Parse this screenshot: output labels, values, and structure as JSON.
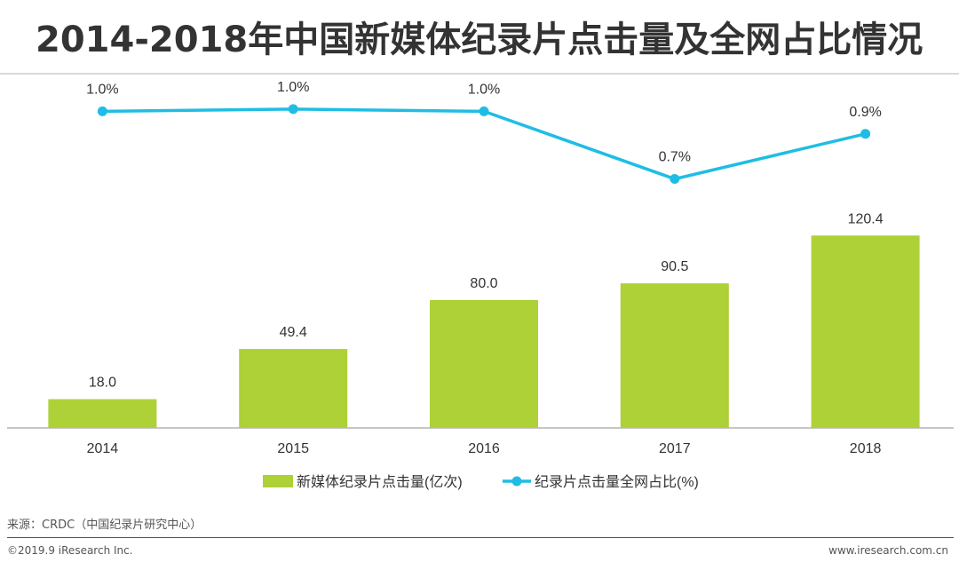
{
  "page": {
    "title": "2014-2018年中国新媒体纪录片点击量及全网占比情况",
    "source": "来源：CRDC（中国纪录片研究中心）",
    "copyright": "©2019.9 iResearch Inc.",
    "website": "www.iresearch.com.cn"
  },
  "chart_data": {
    "type": "bar",
    "title": "2014-2018年中国新媒体纪录片点击量及全网占比情况",
    "categories": [
      "2014",
      "2015",
      "2016",
      "2017",
      "2018"
    ],
    "series": [
      {
        "name": "新媒体纪录片点击量(亿次)",
        "type": "bar",
        "values": [
          18.0,
          49.4,
          80.0,
          90.5,
          120.4
        ],
        "labels": [
          "18.0",
          "49.4",
          "80.0",
          "90.5",
          "120.4"
        ],
        "color": "#add136"
      },
      {
        "name": "纪录片点击量全网占比(%)",
        "type": "line",
        "values": [
          1.0,
          1.01,
          1.0,
          0.7,
          0.9
        ],
        "labels": [
          "1.0%",
          "1.0%",
          "1.0%",
          "0.7%",
          "0.9%"
        ],
        "color": "#1fbde4"
      }
    ],
    "bar_axis_range": [
      0,
      130
    ],
    "line_axis_range": [
      0,
      1.3
    ],
    "grid": false,
    "legend_position": "bottom"
  }
}
